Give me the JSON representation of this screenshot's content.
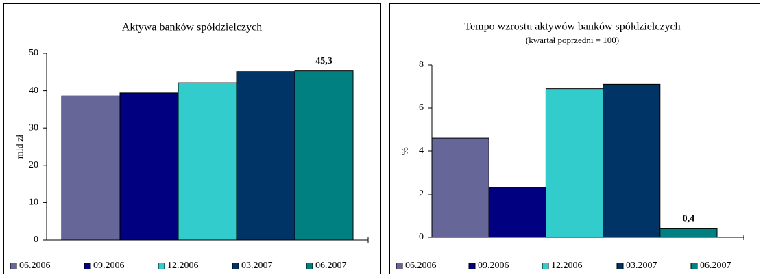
{
  "chart_data": [
    {
      "type": "bar",
      "title": "Aktywa banków spółdzielczych",
      "y_label": "mld zł",
      "categories": [
        "06.2006",
        "09.2006",
        "12.2006",
        "03.2007",
        "06.2007"
      ],
      "values": [
        38.6,
        39.4,
        42.1,
        45.1,
        45.3
      ],
      "value_labels": [
        null,
        null,
        null,
        null,
        "45,3"
      ],
      "colors": [
        "#666699",
        "#000080",
        "#33cccc",
        "#003366",
        "#008080"
      ],
      "ylim": [
        0,
        50
      ],
      "yticks": [
        0,
        10,
        20,
        30,
        40,
        50
      ]
    },
    {
      "type": "bar",
      "title": "Tempo wzrostu aktywów banków spółdzielczych",
      "subtitle": "(kwartał poprzedni = 100)",
      "y_label": "%",
      "categories": [
        "06.2006",
        "09.2006",
        "12.2006",
        "03.2007",
        "06.2007"
      ],
      "values": [
        4.6,
        2.3,
        6.9,
        7.1,
        0.4
      ],
      "value_labels": [
        null,
        null,
        null,
        null,
        "0,4"
      ],
      "colors": [
        "#666699",
        "#000080",
        "#33cccc",
        "#003366",
        "#008080"
      ],
      "ylim": [
        0,
        8
      ],
      "yticks": [
        0,
        2,
        4,
        6,
        8
      ]
    }
  ]
}
